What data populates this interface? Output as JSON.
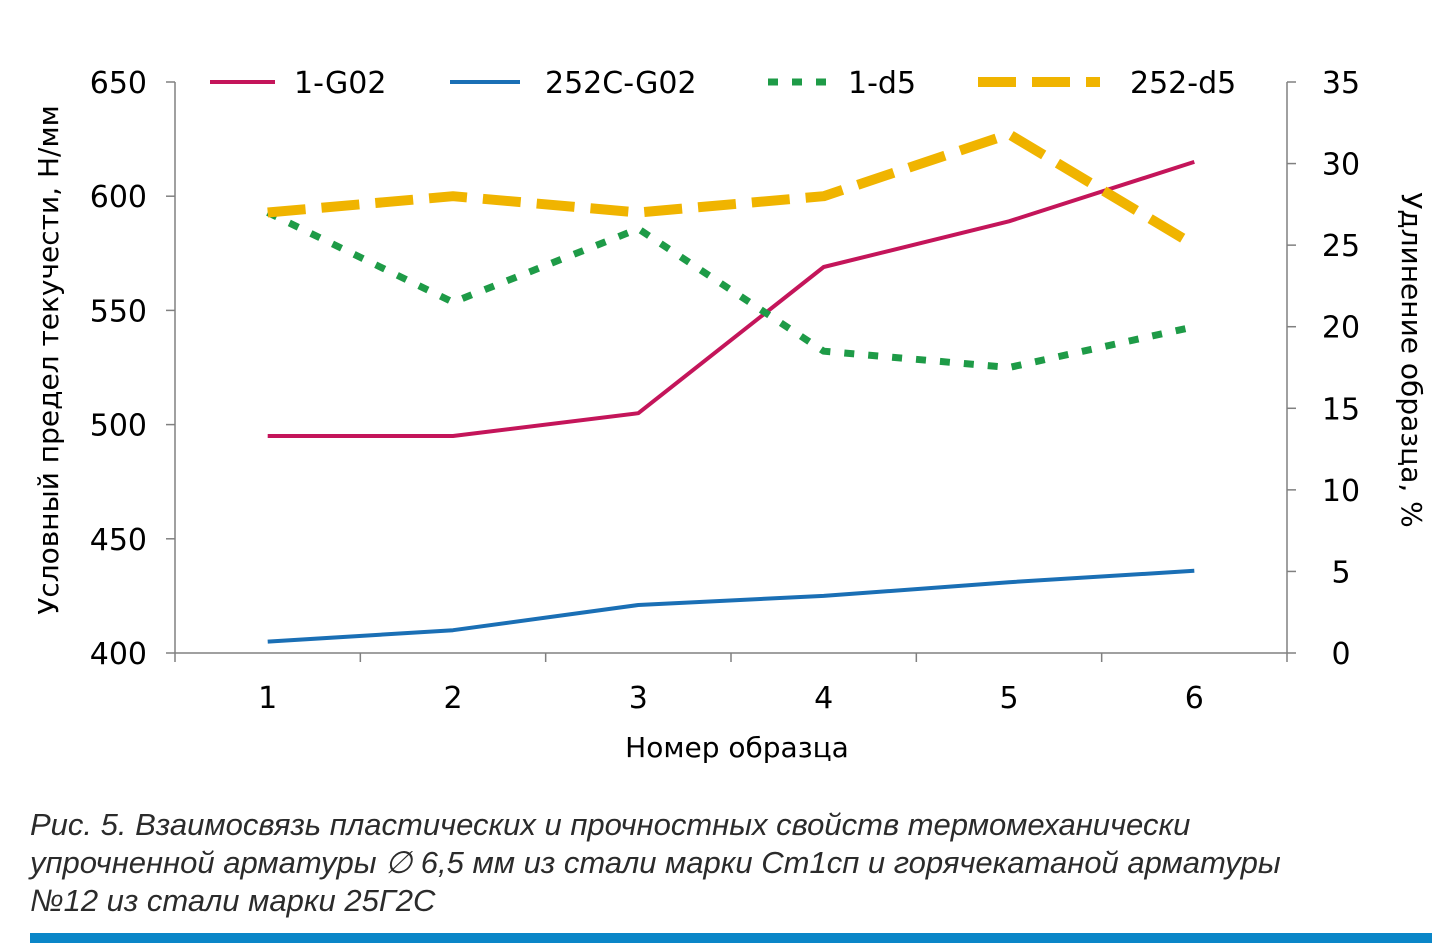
{
  "chart_data": {
    "type": "line",
    "categories": [
      "1",
      "2",
      "3",
      "4",
      "5",
      "6"
    ],
    "xlabel": "Номер образца",
    "ylabel_left": "Условный предел текучести, Н/мм",
    "ylabel_right": "Удлинение образца, %",
    "ylim_left": [
      400,
      650
    ],
    "ylim_right": [
      0,
      35
    ],
    "yticks_left": [
      "400",
      "450",
      "500",
      "550",
      "600",
      "650"
    ],
    "yticks_right": [
      "0",
      "5",
      "10",
      "15",
      "20",
      "25",
      "30",
      "35"
    ],
    "series": [
      {
        "name": "1-G02",
        "axis": "left",
        "style": "solid",
        "color": "#c4155a",
        "values": [
          495,
          495,
          505,
          569,
          589,
          615
        ]
      },
      {
        "name": "252C-G02",
        "axis": "left",
        "style": "solid",
        "color": "#1a6fb5",
        "values": [
          405,
          410,
          421,
          425,
          431,
          436
        ]
      },
      {
        "name": "1-d5",
        "axis": "right",
        "style": "dotted",
        "color": "#1e9b47",
        "values": [
          27,
          21.5,
          26,
          18.5,
          17.5,
          20
        ]
      },
      {
        "name": "252-d5",
        "axis": "right",
        "style": "dashed",
        "color": "#f0b400",
        "values": [
          27,
          28,
          27,
          28,
          31.8,
          25
        ]
      }
    ]
  },
  "caption": {
    "lines": [
      "Рис. 5. Взаимосвязь пластических и прочностных свойств термомеханически",
      "упрочненной арматуры ∅ 6,5 мм из стали марки Ст1сп и горячекатаной арматуры",
      "№12 из стали марки 25Г2С"
    ]
  },
  "colors": {
    "bottom_bar": "#0a86c8"
  }
}
